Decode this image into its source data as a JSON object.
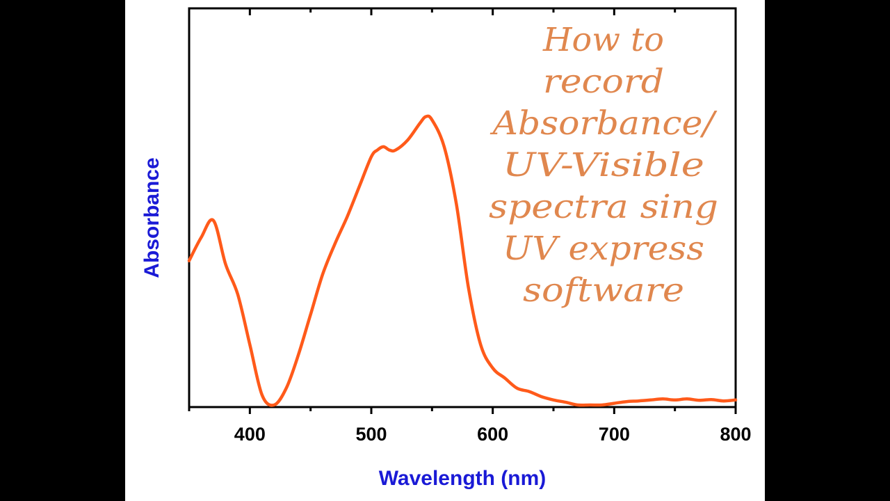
{
  "colors": {
    "background": "#000000",
    "panel": "#ffffff",
    "series": "#ff5a1a",
    "axis_title": "#1a1ad6",
    "overlay_text": "#e0874e"
  },
  "overlay": {
    "lines": [
      "How to",
      "record",
      "Absorbance/",
      "UV-Visible",
      "spectra sing",
      "UV express",
      "software"
    ]
  },
  "chart_data": {
    "type": "line",
    "xlabel": "Wavelength (nm)",
    "ylabel": "Absorbance",
    "xlim": [
      350,
      800
    ],
    "ylim": [
      0,
      1
    ],
    "x_ticks": [
      400,
      500,
      600,
      700,
      800
    ],
    "x_minor_ticks": [
      350,
      450,
      550,
      650,
      750
    ],
    "y_tick_labels_shown": false,
    "grid": false,
    "legend": "none",
    "series": [
      {
        "x": [
          350,
          360,
          370,
          380,
          390,
          400,
          410,
          420,
          430,
          440,
          450,
          460,
          470,
          480,
          490,
          500,
          505,
          510,
          515,
          520,
          530,
          540,
          545,
          550,
          560,
          570,
          580,
          590,
          600,
          610,
          620,
          630,
          640,
          650,
          660,
          670,
          680,
          690,
          700,
          710,
          720,
          730,
          740,
          750,
          760,
          770,
          780,
          790,
          800
        ],
        "y": [
          0.43,
          0.5,
          0.55,
          0.42,
          0.33,
          0.18,
          0.03,
          0.0,
          0.05,
          0.15,
          0.27,
          0.39,
          0.48,
          0.56,
          0.65,
          0.74,
          0.76,
          0.77,
          0.76,
          0.76,
          0.79,
          0.84,
          0.86,
          0.85,
          0.77,
          0.6,
          0.35,
          0.18,
          0.11,
          0.08,
          0.05,
          0.04,
          0.025,
          0.015,
          0.008,
          0.0,
          0.0,
          0.0,
          0.005,
          0.01,
          0.012,
          0.015,
          0.018,
          0.015,
          0.018,
          0.014,
          0.016,
          0.012,
          0.015
        ]
      }
    ]
  }
}
